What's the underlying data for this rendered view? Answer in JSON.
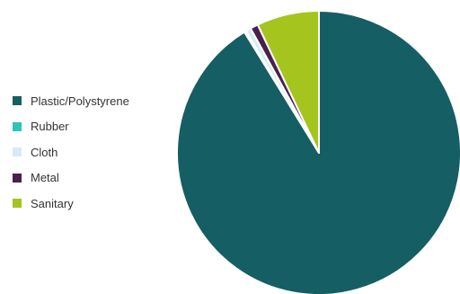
{
  "chart_data": {
    "type": "pie",
    "title": "",
    "start_angle_deg": 0,
    "direction": "clockwise",
    "legend_position": "left",
    "slices": [
      {
        "name": "Plastic/Polystyrene",
        "value": 91.2,
        "color": "#155e63"
      },
      {
        "name": "Rubber",
        "value": 0.2,
        "color": "#2ec4b6"
      },
      {
        "name": "Cloth",
        "value": 0.6,
        "color": "#d6ecf2"
      },
      {
        "name": "Metal",
        "value": 0.9,
        "color": "#4a1f4f"
      },
      {
        "name": "Sanitary",
        "value": 7.1,
        "color": "#a5c41d"
      }
    ]
  }
}
